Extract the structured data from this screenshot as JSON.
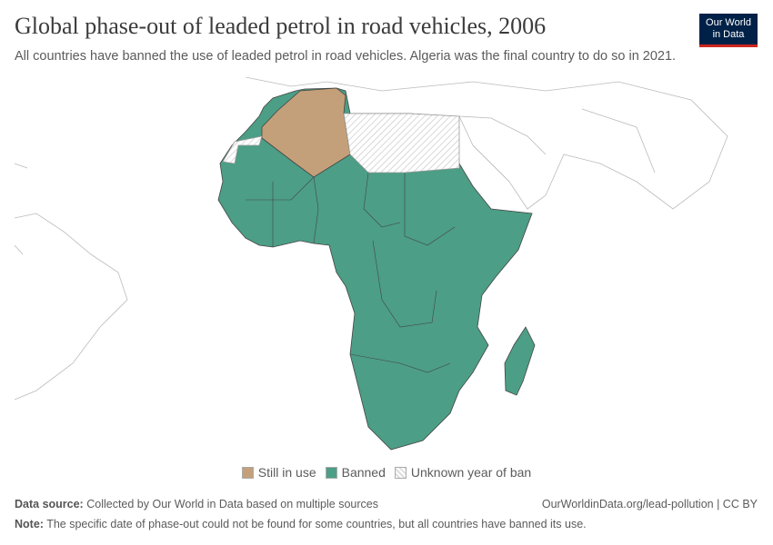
{
  "header": {
    "title": "Global phase-out of leaded petrol in road vehicles, 2006",
    "subtitle": "All countries have banned the use of leaded petrol in road vehicles. Algeria was the final country to do so in 2021.",
    "logo": "Our World in Data"
  },
  "map": {
    "year": "2006",
    "region": "Africa",
    "categories": [
      {
        "label": "Still in use",
        "color": "#C4A07A",
        "countries": [
          "Algeria"
        ]
      },
      {
        "label": "Banned",
        "color": "#4C9E86"
      },
      {
        "label": "Unknown year of ban",
        "color": "hatched",
        "countries": [
          "Libya",
          "Egypt",
          "Western Sahara"
        ]
      }
    ]
  },
  "footer": {
    "source_label": "Data source:",
    "source": "Collected by Our World in Data based on multiple sources",
    "url": "OurWorldinData.org/lead-pollution | CC BY",
    "note_label": "Note:",
    "note": "The specific date of phase-out could not be found for some countries, but all countries have banned its use."
  }
}
